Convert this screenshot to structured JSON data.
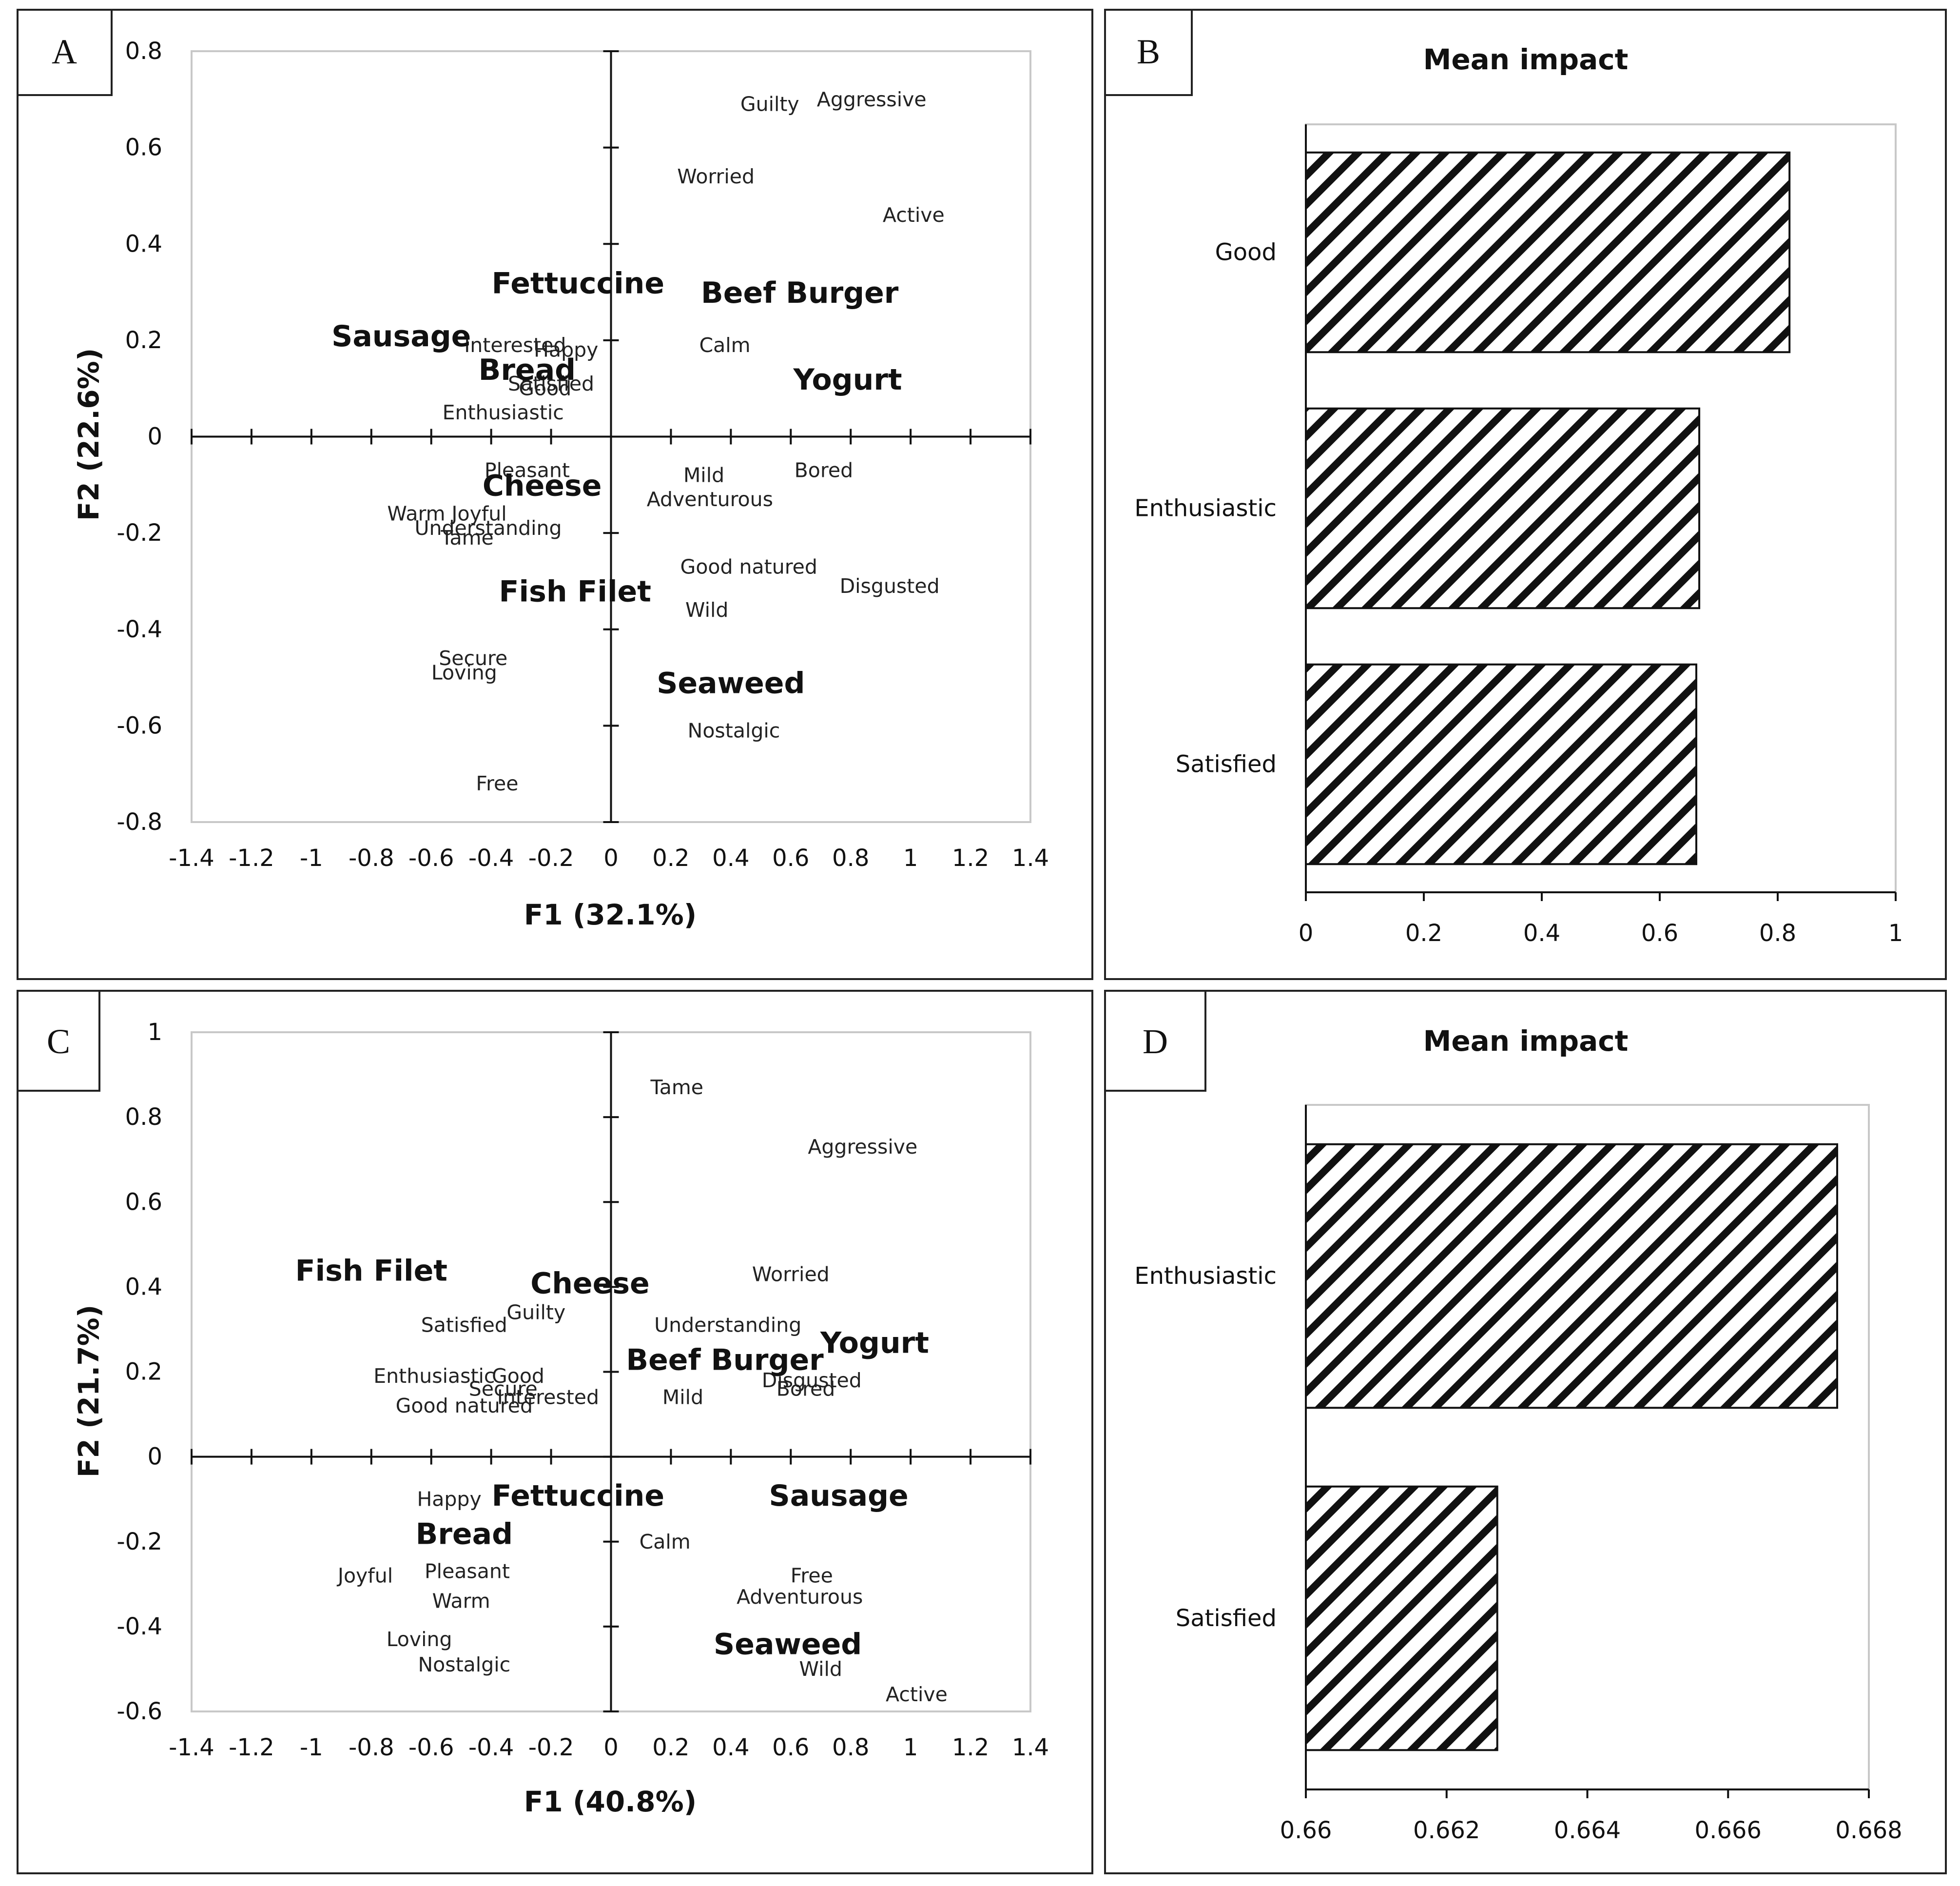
{
  "panels": [
    {
      "letter": "A",
      "chart_data": {
        "type": "scatter",
        "xlabel": "F1 (32.1%)",
        "ylabel": "F2 (22.6%)",
        "xlim": [
          -1.4,
          1.4
        ],
        "ylim": [
          -0.8,
          0.8
        ],
        "xticks": [
          -1.4,
          -1.2,
          -1,
          -0.8,
          -0.6,
          -0.4,
          -0.2,
          0,
          0.2,
          0.4,
          0.6,
          0.8,
          1,
          1.2,
          1.4
        ],
        "yticks": [
          -0.8,
          -0.6,
          -0.4,
          -0.2,
          0,
          0.2,
          0.4,
          0.6,
          0.8
        ],
        "products": [
          {
            "label": "Fettuccine",
            "x": -0.11,
            "y": 0.32
          },
          {
            "label": "Beef Burger",
            "x": 0.63,
            "y": 0.3
          },
          {
            "label": "Sausage",
            "x": -0.7,
            "y": 0.21
          },
          {
            "label": "Bread",
            "x": -0.28,
            "y": 0.14
          },
          {
            "label": "Yogurt",
            "x": 0.79,
            "y": 0.12
          },
          {
            "label": "Cheese",
            "x": -0.23,
            "y": -0.1
          },
          {
            "label": "Fish Filet",
            "x": -0.12,
            "y": -0.32
          },
          {
            "label": "Seaweed",
            "x": 0.4,
            "y": -0.51
          }
        ],
        "attributes": [
          {
            "label": "Guilty",
            "x": 0.53,
            "y": 0.69
          },
          {
            "label": "Aggressive",
            "x": 0.87,
            "y": 0.7
          },
          {
            "label": "Worried",
            "x": 0.35,
            "y": 0.54
          },
          {
            "label": "Active",
            "x": 1.01,
            "y": 0.46
          },
          {
            "label": "Interested",
            "x": -0.32,
            "y": 0.19
          },
          {
            "label": "Happy",
            "x": -0.15,
            "y": 0.18
          },
          {
            "label": "Calm",
            "x": 0.38,
            "y": 0.19
          },
          {
            "label": "Satisfied",
            "x": -0.2,
            "y": 0.11
          },
          {
            "label": "Good",
            "x": -0.22,
            "y": 0.1
          },
          {
            "label": "Enthusiastic",
            "x": -0.36,
            "y": 0.05
          },
          {
            "label": "Pleasant",
            "x": -0.28,
            "y": -0.07
          },
          {
            "label": "Mild",
            "x": 0.31,
            "y": -0.08
          },
          {
            "label": "Bored",
            "x": 0.71,
            "y": -0.07
          },
          {
            "label": "Adventurous",
            "x": 0.33,
            "y": -0.13
          },
          {
            "label": "Warm",
            "x": -0.65,
            "y": -0.16
          },
          {
            "label": "Joyful",
            "x": -0.44,
            "y": -0.16
          },
          {
            "label": "Understanding",
            "x": -0.41,
            "y": -0.19
          },
          {
            "label": "Tame",
            "x": -0.48,
            "y": -0.21
          },
          {
            "label": "Good natured",
            "x": 0.46,
            "y": -0.27
          },
          {
            "label": "Disgusted",
            "x": 0.93,
            "y": -0.31
          },
          {
            "label": "Wild",
            "x": 0.32,
            "y": -0.36
          },
          {
            "label": "Secure",
            "x": -0.46,
            "y": -0.46
          },
          {
            "label": "Loving",
            "x": -0.49,
            "y": -0.49
          },
          {
            "label": "Nostalgic",
            "x": 0.41,
            "y": -0.61
          },
          {
            "label": "Free",
            "x": -0.38,
            "y": -0.72
          }
        ]
      }
    },
    {
      "letter": "B",
      "chart_data": {
        "type": "bar",
        "orientation": "horizontal",
        "title": "Mean impact",
        "categories": [
          "Good",
          "Enthusiastic",
          "Satisfied"
        ],
        "values": [
          0.82,
          0.667,
          0.662
        ],
        "xlim": [
          0,
          1
        ],
        "xticks": [
          0,
          0.2,
          0.4,
          0.6,
          0.8,
          1
        ],
        "hatch": "diagonal"
      }
    },
    {
      "letter": "C",
      "chart_data": {
        "type": "scatter",
        "xlabel": "F1 (40.8%)",
        "ylabel": "F2 (21.7%)",
        "xlim": [
          -1.4,
          1.4
        ],
        "ylim": [
          -0.6,
          1.0
        ],
        "xticks": [
          -1.4,
          -1.2,
          -1,
          -0.8,
          -0.6,
          -0.4,
          -0.2,
          0,
          0.2,
          0.4,
          0.6,
          0.8,
          1,
          1.2,
          1.4
        ],
        "yticks": [
          -0.6,
          -0.4,
          -0.2,
          0,
          0.2,
          0.4,
          0.6,
          0.8,
          1
        ],
        "products": [
          {
            "label": "Fish Filet",
            "x": -0.8,
            "y": 0.44
          },
          {
            "label": "Cheese",
            "x": -0.07,
            "y": 0.41
          },
          {
            "label": "Yogurt",
            "x": 0.88,
            "y": 0.27
          },
          {
            "label": "Beef Burger",
            "x": 0.38,
            "y": 0.23
          },
          {
            "label": "Fettuccine",
            "x": -0.11,
            "y": -0.09
          },
          {
            "label": "Sausage",
            "x": 0.76,
            "y": -0.09
          },
          {
            "label": "Bread",
            "x": -0.49,
            "y": -0.18
          },
          {
            "label": "Seaweed",
            "x": 0.59,
            "y": -0.44
          }
        ],
        "attributes": [
          {
            "label": "Tame",
            "x": 0.22,
            "y": 0.87
          },
          {
            "label": "Aggressive",
            "x": 0.84,
            "y": 0.73
          },
          {
            "label": "Worried",
            "x": 0.6,
            "y": 0.43
          },
          {
            "label": "Satisfied",
            "x": -0.49,
            "y": 0.31
          },
          {
            "label": "Guilty",
            "x": -0.25,
            "y": 0.34
          },
          {
            "label": "Understanding",
            "x": 0.39,
            "y": 0.31
          },
          {
            "label": "Enthusiastic",
            "x": -0.59,
            "y": 0.19
          },
          {
            "label": "Good",
            "x": -0.31,
            "y": 0.19
          },
          {
            "label": "Secure",
            "x": -0.36,
            "y": 0.16
          },
          {
            "label": "Interested",
            "x": -0.21,
            "y": 0.14
          },
          {
            "label": "Good natured",
            "x": -0.49,
            "y": 0.12
          },
          {
            "label": "Mild",
            "x": 0.24,
            "y": 0.14
          },
          {
            "label": "Disgusted",
            "x": 0.67,
            "y": 0.18
          },
          {
            "label": "Bored",
            "x": 0.65,
            "y": 0.16
          },
          {
            "label": "Happy",
            "x": -0.54,
            "y": -0.1
          },
          {
            "label": "Calm",
            "x": 0.18,
            "y": -0.2
          },
          {
            "label": "Joyful",
            "x": -0.82,
            "y": -0.28
          },
          {
            "label": "Pleasant",
            "x": -0.48,
            "y": -0.27
          },
          {
            "label": "Warm",
            "x": -0.5,
            "y": -0.34
          },
          {
            "label": "Free",
            "x": 0.67,
            "y": -0.28
          },
          {
            "label": "Adventurous",
            "x": 0.63,
            "y": -0.33
          },
          {
            "label": "Loving",
            "x": -0.64,
            "y": -0.43
          },
          {
            "label": "Nostalgic",
            "x": -0.49,
            "y": -0.49
          },
          {
            "label": "Wild",
            "x": 0.7,
            "y": -0.5
          },
          {
            "label": "Active",
            "x": 1.02,
            "y": -0.56
          }
        ]
      }
    },
    {
      "letter": "D",
      "chart_data": {
        "type": "bar",
        "orientation": "horizontal",
        "title": "Mean impact",
        "categories": [
          "Enthusiastic",
          "Satisfied"
        ],
        "values": [
          0.66755,
          0.66272
        ],
        "xlim": [
          0.66,
          0.668
        ],
        "xticks": [
          0.66,
          0.662,
          0.664,
          0.666,
          0.668
        ],
        "hatch": "diagonal"
      }
    }
  ]
}
